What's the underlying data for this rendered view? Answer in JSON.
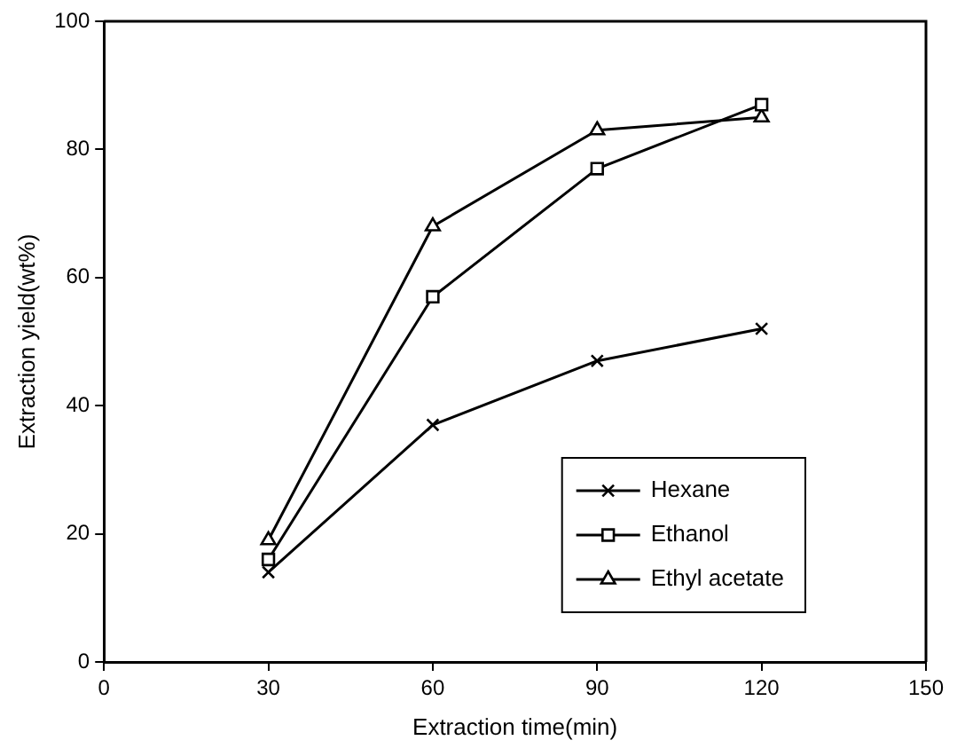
{
  "chart_data": {
    "type": "line",
    "xlabel": "Extraction time(min)",
    "ylabel": "Extraction yield(wt%)",
    "x": [
      30,
      60,
      90,
      120
    ],
    "xlim": [
      0,
      150
    ],
    "xticks": [
      0,
      30,
      60,
      90,
      120,
      150
    ],
    "ylim": [
      0,
      100
    ],
    "yticks": [
      0,
      20,
      40,
      60,
      80,
      100
    ],
    "grid": false,
    "legend": "bottom right",
    "line_style": "solid",
    "series": [
      {
        "name": "Hexane",
        "color": "#000000",
        "marker": "cross",
        "values": [
          14,
          37,
          47,
          52
        ]
      },
      {
        "name": "Ethanol",
        "color": "#000000",
        "marker": "square",
        "values": [
          16,
          57,
          77,
          87
        ]
      },
      {
        "name": "Ethyl acetate",
        "color": "#000000",
        "marker": "triangle",
        "values": [
          19,
          68,
          83,
          85
        ]
      }
    ]
  }
}
